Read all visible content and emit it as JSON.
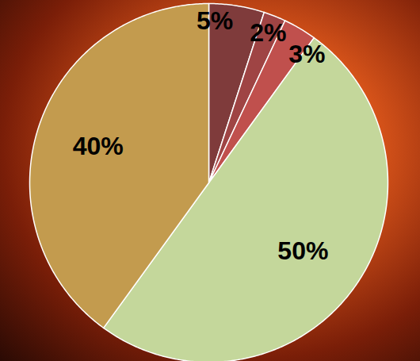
{
  "chart_data": {
    "type": "pie",
    "values": [
      5,
      2,
      3,
      50,
      40
    ],
    "value_labels": [
      "5%",
      "2%",
      "3%",
      "50%",
      "40%"
    ],
    "colors": [
      "#7f3b3b",
      "#9f4444",
      "#c0504d",
      "#c4d79b",
      "#c39b4e"
    ],
    "data_labels": true
  }
}
